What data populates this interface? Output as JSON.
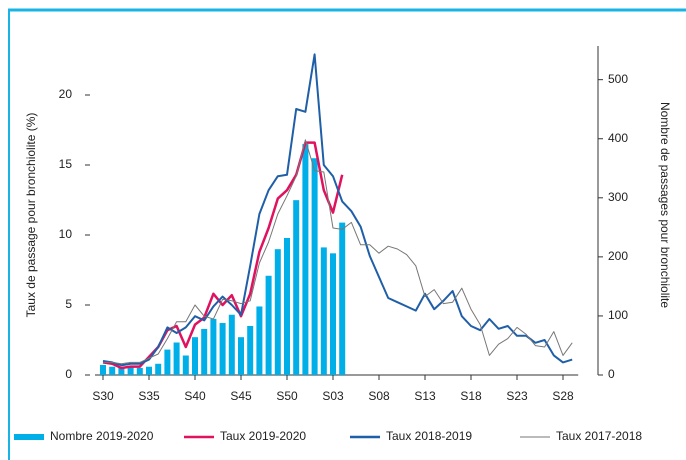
{
  "chart_data": {
    "type": "bar-line",
    "y_label": "Taux de passage pour bronchiolite (%)",
    "y2_label": "Nombre de passages pour bronchiolite",
    "categories": [
      "S30",
      null,
      null,
      null,
      null,
      "S35",
      null,
      null,
      null,
      null,
      "S40",
      null,
      null,
      null,
      null,
      "S45",
      null,
      null,
      null,
      null,
      "S50",
      null,
      null,
      null,
      null,
      "S03",
      null,
      null,
      null,
      null,
      "S08",
      null,
      null,
      null,
      null,
      "S13",
      null,
      null,
      null,
      null,
      "S18",
      null,
      null,
      null,
      null,
      "S23",
      null,
      null,
      null,
      null,
      "S28",
      null
    ],
    "ylim": [
      0,
      23.5
    ],
    "yticks": [
      0,
      5,
      10,
      15,
      20
    ],
    "y2lim": [
      0,
      557
    ],
    "y2ticks": [
      0,
      100,
      200,
      300,
      400,
      500
    ],
    "series": [
      {
        "name": "Nombre 2019-2020",
        "type": "bar",
        "axis": "y2",
        "color": "#00aee8",
        "values": [
          17,
          14,
          12,
          14,
          12,
          14,
          19,
          43,
          55,
          33,
          64,
          78,
          95,
          88,
          102,
          64,
          83,
          116,
          168,
          213,
          232,
          296,
          391,
          367,
          216,
          206,
          258,
          null,
          null,
          null,
          null,
          null,
          null,
          null,
          null,
          null,
          null,
          null,
          null,
          null,
          null,
          null,
          null,
          null,
          null,
          null,
          null,
          null,
          null,
          null,
          null,
          null
        ]
      },
      {
        "name": "Taux 2019-2020",
        "type": "line",
        "color": "#e0115f",
        "values": [
          0.9,
          0.8,
          0.5,
          0.6,
          0.6,
          1.3,
          2.0,
          3.2,
          3.5,
          2.0,
          3.6,
          4.1,
          5.8,
          5.0,
          5.7,
          4.2,
          5.8,
          8.8,
          10.5,
          12.6,
          13.2,
          14.3,
          16.6,
          16.6,
          13.2,
          11.6,
          14.3,
          null,
          null,
          null,
          null,
          null,
          null,
          null,
          null,
          null,
          null,
          null,
          null,
          null,
          null,
          null,
          null,
          null,
          null,
          null,
          null,
          null,
          null,
          null,
          null,
          null
        ]
      },
      {
        "name": "Taux 2018-2019",
        "type": "line",
        "color": "#1f5fa8",
        "values": [
          1.0,
          0.9,
          0.7,
          0.8,
          0.8,
          1.1,
          2.0,
          3.4,
          3.0,
          3.4,
          4.2,
          3.9,
          4.9,
          5.6,
          5.0,
          4.3,
          7.8,
          11.5,
          13.2,
          14.2,
          14.3,
          19.0,
          18.8,
          22.9,
          15.0,
          14.2,
          12.4,
          11.7,
          10.6,
          8.5,
          7.0,
          5.5,
          5.2,
          4.9,
          4.6,
          5.8,
          4.7,
          5.3,
          6.0,
          4.2,
          3.5,
          3.2,
          4.0,
          3.3,
          3.5,
          2.8,
          2.8,
          2.3,
          2.5,
          1.4,
          0.9,
          1.1
        ]
      },
      {
        "name": "Taux 2017-2018",
        "type": "line",
        "color": "#777777",
        "values": [
          0.9,
          0.9,
          0.8,
          0.9,
          0.9,
          1.2,
          1.5,
          2.6,
          3.8,
          3.8,
          5.0,
          4.2,
          4.0,
          5.4,
          5.3,
          5.1,
          5.3,
          8.0,
          9.5,
          11.5,
          12.8,
          14.2,
          16.8,
          14.6,
          14.5,
          10.5,
          10.4,
          10.9,
          9.3,
          9.3,
          8.7,
          9.2,
          9.0,
          8.6,
          7.8,
          5.6,
          6.1,
          5.1,
          5.2,
          6.2,
          4.7,
          3.6,
          1.4,
          2.2,
          2.6,
          3.4,
          2.9,
          2.1,
          2.0,
          3.1,
          1.4,
          2.3
        ]
      }
    ]
  }
}
